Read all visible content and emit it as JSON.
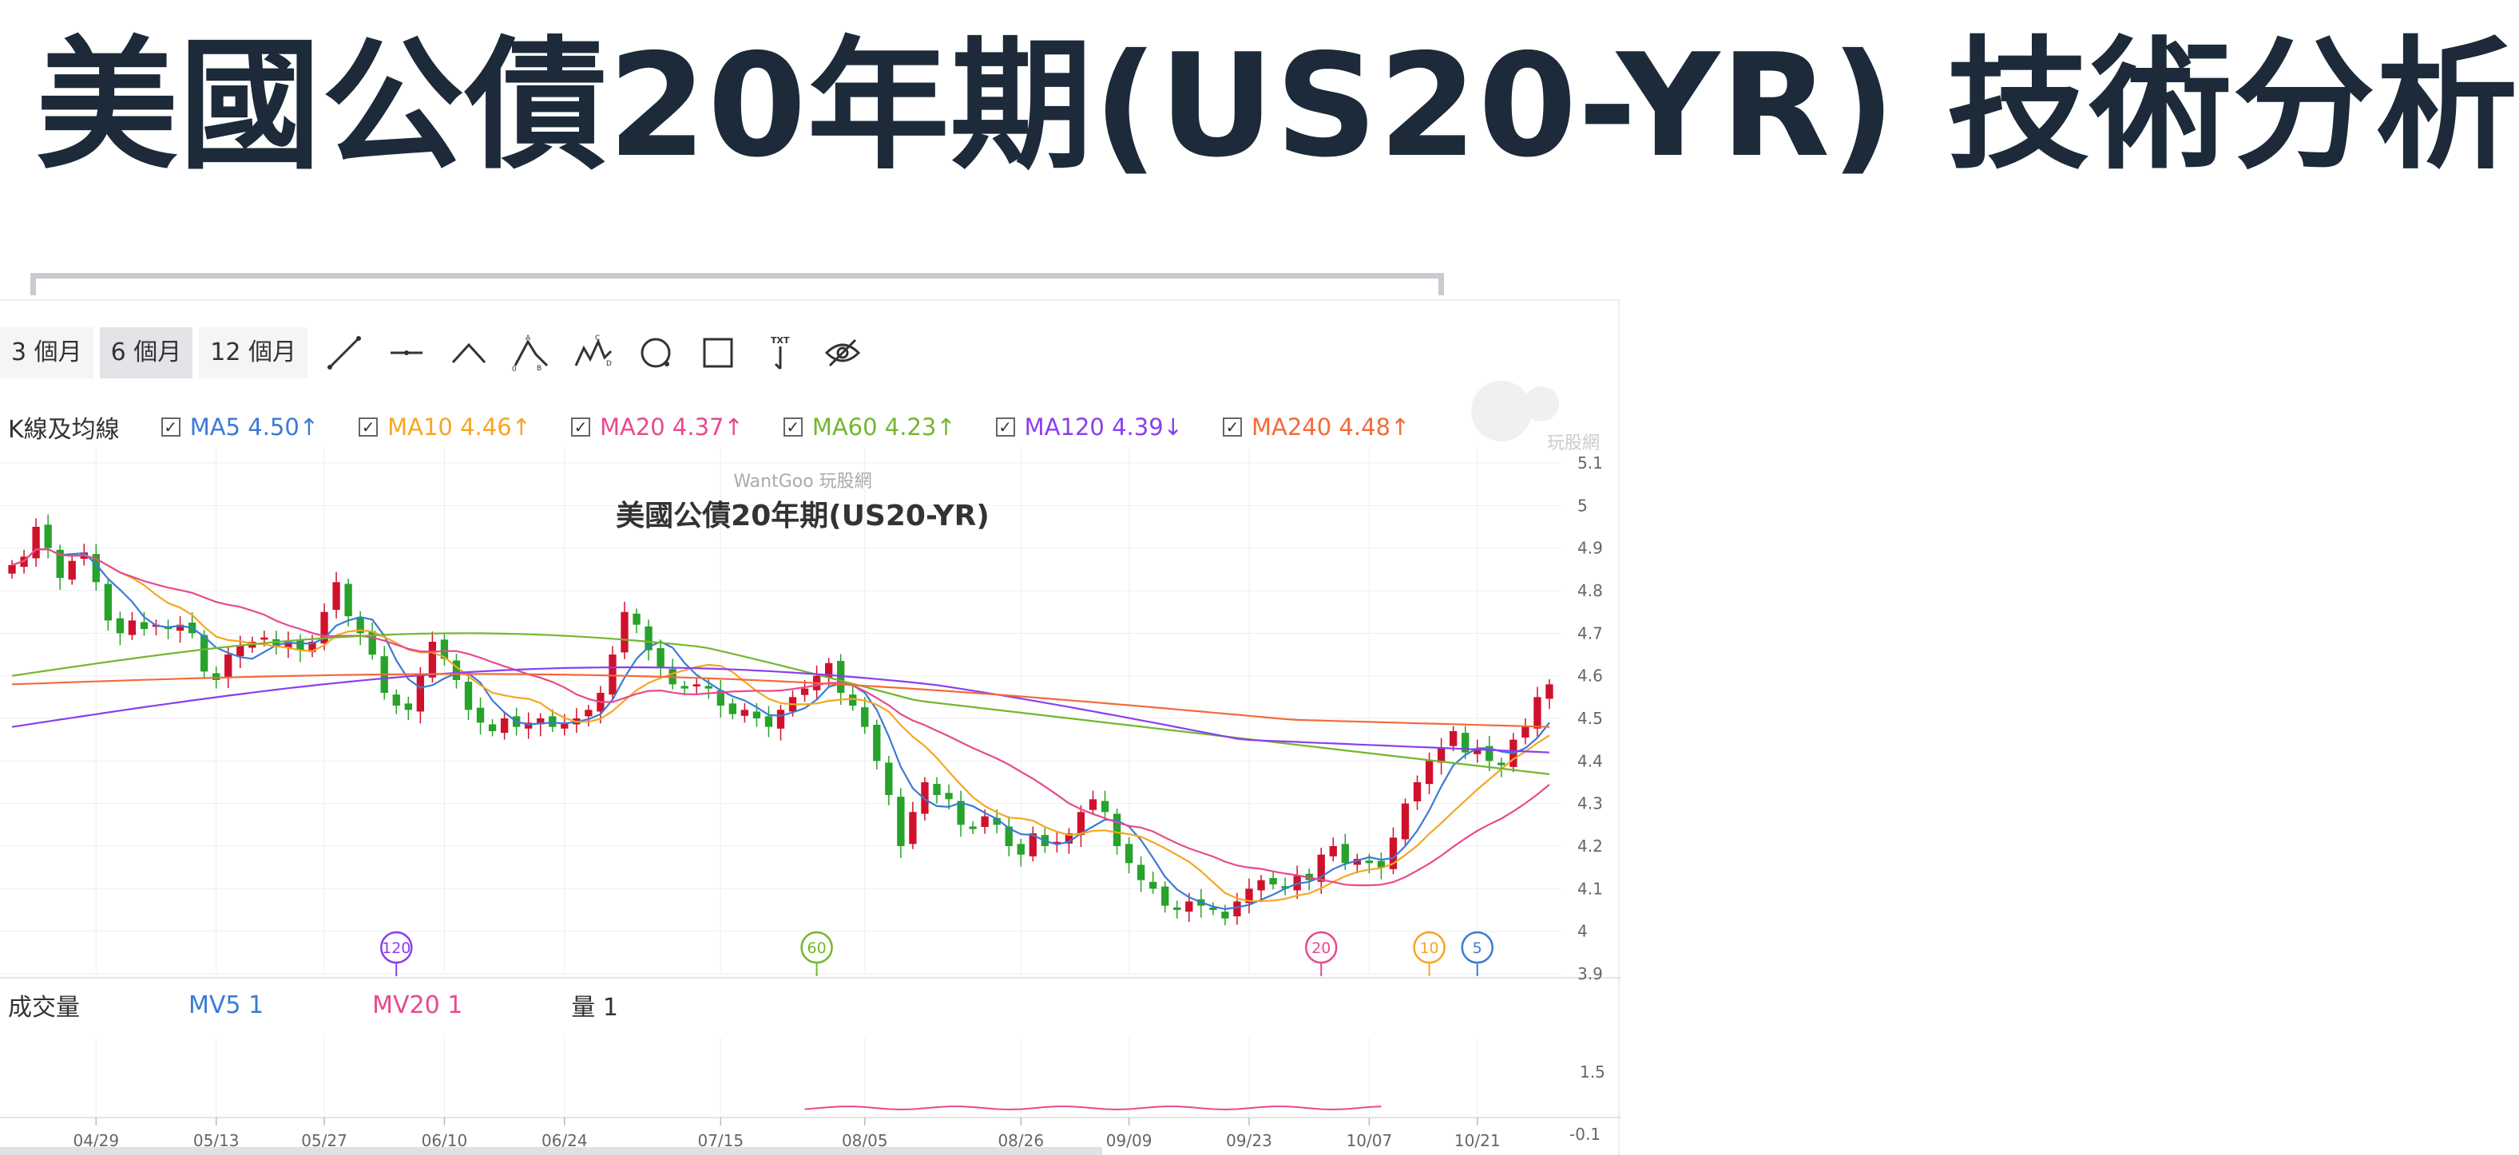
{
  "page_title": "美國公債20年期(US20-YR) 技術分析",
  "range_tabs": [
    {
      "label": "3 個月",
      "active": false
    },
    {
      "label": "6 個月",
      "active": true
    },
    {
      "label": "12 個月",
      "active": false
    }
  ],
  "draw_tools": [
    "line-tool-icon",
    "horizontal-line-tool-icon",
    "angle-tool-icon",
    "abcd-pattern-tool-icon",
    "wave-pattern-tool-icon",
    "circle-tool-icon",
    "rectangle-tool-icon",
    "text-tool-icon",
    "hide-drawings-icon"
  ],
  "kline_label": "K線及均線",
  "ma_legend": [
    {
      "label": "MA5 4.50↑",
      "color": "#3a7bd5"
    },
    {
      "label": "MA10 4.46↑",
      "color": "#f5a623"
    },
    {
      "label": "MA20 4.37↑",
      "color": "#e8498f"
    },
    {
      "label": "MA60 4.23↑",
      "color": "#74b72e"
    },
    {
      "label": "MA120 4.39↓",
      "color": "#8a3ff0"
    },
    {
      "label": "MA240 4.48↑",
      "color": "#f26b3a"
    }
  ],
  "watermark_logo_text": "玩股網",
  "volume_legend": {
    "title": "成交量",
    "items": [
      {
        "label": "MV5 1",
        "color": "#3a7bd5"
      },
      {
        "label": "MV20 1",
        "color": "#e8498f"
      },
      {
        "label": "量 1",
        "color": "#333333"
      }
    ]
  },
  "colors": {
    "up": "#d0112b",
    "down": "#27a22a",
    "grid": "#eceef0",
    "axis_text": "#666666"
  },
  "chart_data": {
    "type": "candlestick",
    "watermark": "WantGoo 玩股網",
    "title": "美國公債20年期(US20-YR)",
    "y_ticks": [
      "5.1",
      "5",
      "4.9",
      "4.8",
      "4.7",
      "4.6",
      "4.5",
      "4.4",
      "4.3",
      "4.2",
      "4.1",
      "4",
      "3.9"
    ],
    "ylim": [
      3.9,
      5.1
    ],
    "x_tick_labels": [
      "04/29",
      "05/13",
      "05/27",
      "06/10",
      "06/24",
      "07/15",
      "08/05",
      "08/26",
      "09/09",
      "09/23",
      "10/07",
      "10/21"
    ],
    "x_tick_index": [
      7,
      17,
      26,
      36,
      46,
      59,
      71,
      84,
      93,
      103,
      113,
      122
    ],
    "close": [
      4.86,
      4.88,
      4.95,
      4.9,
      4.83,
      4.87,
      4.89,
      4.82,
      4.73,
      4.7,
      4.73,
      4.71,
      4.72,
      4.71,
      4.72,
      4.7,
      4.61,
      4.59,
      4.65,
      4.67,
      4.68,
      4.69,
      4.67,
      4.68,
      4.66,
      4.68,
      4.75,
      4.82,
      4.74,
      4.7,
      4.65,
      4.56,
      4.53,
      4.52,
      4.6,
      4.68,
      4.64,
      4.59,
      4.52,
      4.49,
      4.47,
      4.5,
      4.48,
      4.49,
      4.5,
      4.48,
      4.49,
      4.5,
      4.52,
      4.56,
      4.65,
      4.75,
      4.72,
      4.66,
      4.62,
      4.58,
      4.57,
      4.58,
      4.57,
      4.53,
      4.51,
      4.52,
      4.5,
      4.48,
      4.52,
      4.55,
      4.57,
      4.6,
      4.63,
      4.56,
      4.53,
      4.48,
      4.4,
      4.32,
      4.2,
      4.28,
      4.35,
      4.32,
      4.31,
      4.25,
      4.24,
      4.27,
      4.25,
      4.2,
      4.18,
      4.23,
      4.2,
      4.21,
      4.23,
      4.28,
      4.31,
      4.28,
      4.2,
      4.16,
      4.12,
      4.1,
      4.06,
      4.05,
      4.07,
      4.06,
      4.05,
      4.03,
      4.07,
      4.1,
      4.12,
      4.11,
      4.1,
      4.13,
      4.12,
      4.18,
      4.2,
      4.16,
      4.17,
      4.16,
      4.15,
      4.22,
      4.3,
      4.35,
      4.4,
      4.43,
      4.47,
      4.42,
      4.43,
      4.4,
      4.39,
      4.45,
      4.48,
      4.55,
      4.58
    ]
  }
}
